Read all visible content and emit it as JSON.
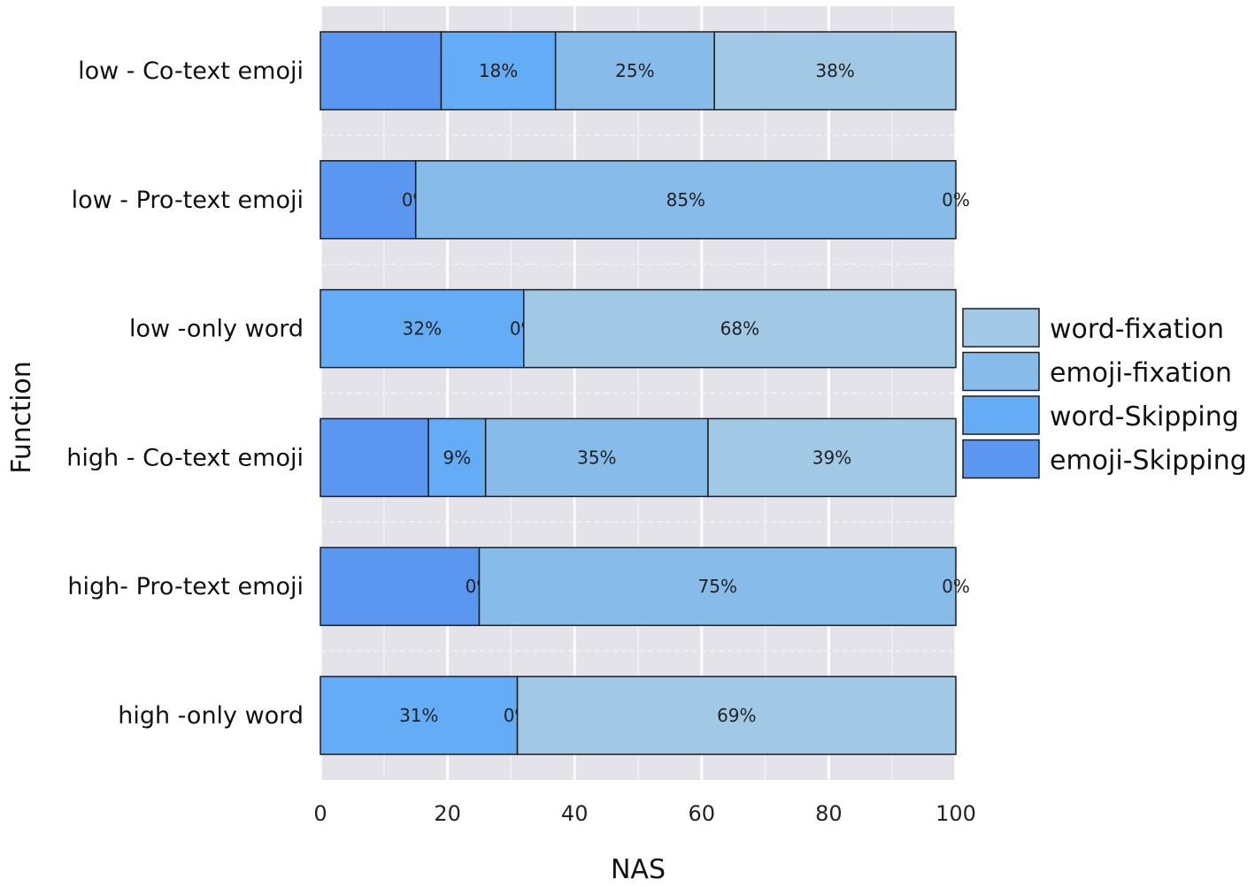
{
  "chart_data": {
    "type": "bar",
    "orientation": "horizontal",
    "stacked": true,
    "title": "",
    "xlabel": "NAS",
    "ylabel": "Function",
    "xlim": [
      0,
      100
    ],
    "xticks": [
      "0",
      "20",
      "40",
      "60",
      "80",
      "100"
    ],
    "grid": true,
    "legend_position": "right",
    "categories": [
      "low - Co-text emoji",
      "low - Pro-text emoji",
      "low -only word",
      "high - Co-text emoji",
      "high- Pro-text emoji",
      "high -only word"
    ],
    "series": [
      {
        "name": "emoji-Skipping",
        "color": "#5b97f0",
        "values": [
          19,
          15,
          0,
          17,
          25,
          0
        ],
        "labels": [
          "",
          "",
          "",
          "",
          "",
          ""
        ]
      },
      {
        "name": "word-Skipping",
        "color": "#64acf5",
        "values": [
          18,
          0,
          32,
          9,
          0,
          31
        ],
        "labels": [
          "18%",
          "0%",
          "32%",
          "9%",
          "0%",
          "31%"
        ]
      },
      {
        "name": "emoji-fixation",
        "color": "#87bbea",
        "values": [
          25,
          85,
          0,
          35,
          75,
          0
        ],
        "labels": [
          "25%",
          "85%",
          "0%",
          "35%",
          "75%",
          "0%"
        ]
      },
      {
        "name": "word-fixation",
        "color": "#a1c8e4",
        "values": [
          38,
          0,
          68,
          39,
          0,
          69
        ],
        "labels": [
          "38%",
          "0%",
          "68%",
          "39%",
          "0%",
          "69%"
        ]
      }
    ],
    "legend_order": [
      "word-fixation",
      "emoji-fixation",
      "word-Skipping",
      "emoji-Skipping"
    ]
  }
}
